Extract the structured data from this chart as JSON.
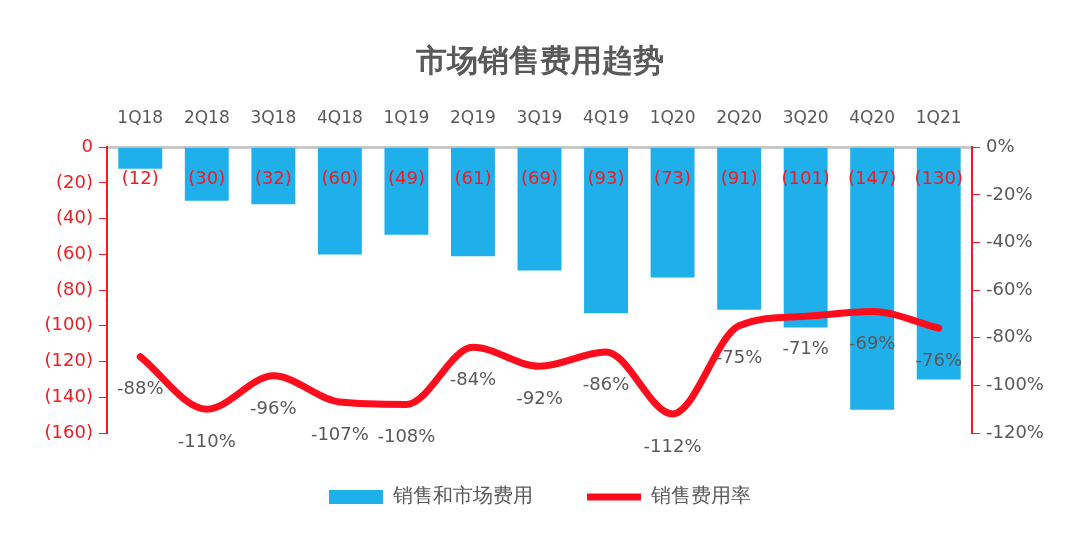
{
  "chart_data": {
    "type": "bar",
    "title": "市场销售费用趋势",
    "categories": [
      "1Q18",
      "2Q18",
      "3Q18",
      "4Q18",
      "1Q19",
      "2Q19",
      "3Q19",
      "4Q19",
      "1Q20",
      "2Q20",
      "3Q20",
      "4Q20",
      "1Q21"
    ],
    "series": [
      {
        "name": "销售和市场费用",
        "color": "#1fafea",
        "values": [
          -12,
          -30,
          -32,
          -60,
          -49,
          -61,
          -69,
          -93,
          -73,
          -91,
          -101,
          -147,
          -130
        ],
        "value_labels": [
          "(12)",
          "(30)",
          "(32)",
          "(60)",
          "(49)",
          "(61)",
          "(69)",
          "(93)",
          "(73)",
          "(91)",
          "(101)",
          "(147)",
          "(130)"
        ]
      },
      {
        "name": "销售费用率",
        "type": "line",
        "axis": "y2",
        "color": "#ff0d1c",
        "values": [
          -88,
          -110,
          -96,
          -107,
          -108,
          -84,
          -92,
          -86,
          -112,
          -75,
          -71,
          -69,
          -76
        ],
        "value_labels": [
          "-88%",
          "-110%",
          "-96%",
          "-107%",
          "-108%",
          "-84%",
          "-92%",
          "-86%",
          "-112%",
          "-75%",
          "-71%",
          "-69%",
          "-76%"
        ]
      }
    ],
    "ylim": [
      -160,
      0
    ],
    "yticks": [
      0,
      {
        "value": -20,
        "label": "(20)"
      },
      {
        "value": -40,
        "label": "(40)"
      },
      {
        "value": -60,
        "label": "(60)"
      },
      {
        "value": -80,
        "label": "(80)"
      },
      {
        "value": -100,
        "label": "(100)"
      },
      {
        "value": -120,
        "label": "(120)"
      },
      {
        "value": -140,
        "label": "(140)"
      },
      {
        "value": -160,
        "label": "(160)"
      }
    ],
    "y2lim": [
      -120,
      0
    ],
    "y2ticks": [
      {
        "value": 0,
        "label": "0%"
      },
      {
        "value": -20,
        "label": "-20%"
      },
      {
        "value": -40,
        "label": "-40%"
      },
      {
        "value": -60,
        "label": "-60%"
      },
      {
        "value": -80,
        "label": "-80%"
      },
      {
        "value": -100,
        "label": "-100%"
      },
      {
        "value": -120,
        "label": "-120%"
      }
    ],
    "legend": "bottom",
    "grid": false,
    "marker": "none"
  }
}
